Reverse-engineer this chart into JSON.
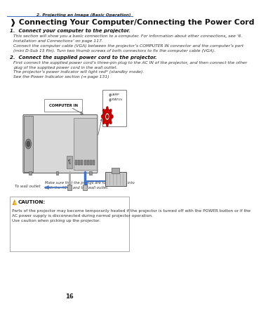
{
  "bg_color": "#ffffff",
  "header_line_color": "#4472c4",
  "header_text": "2. Projecting an Image (Basic Operation)",
  "title": "❱ Connecting Your Computer/Connecting the Power Cord",
  "step1_bold": "1.  Connect your computer to the projector.",
  "step1_p1": "This section will show you a basic connection to a computer. For information about other connections, see ‘6.\nInstallation and Connections’ on page 117.",
  "step1_p2": "Connect the computer cable (VGA) between the projector’s COMPUTER IN connector and the computer’s port\n(mini D-Sub 15 Pin). Turn two thumb screws of both connectors to fix the computer cable (VGA).",
  "step2_bold": "2.  Connect the supplied power cord to the projector.",
  "step2_p1": "First connect the supplied power cord’s three-pin plug to the AC IN of the projector, and then connect the other\nplug of the supplied power cord in the wall outlet.",
  "step2_p2": "The projector’s power indicator will light red* (standby mode).",
  "step2_p3": "See the Power Indicator section (→ page 131)",
  "caution_title": "CAUTION:",
  "caution_text": "Parts of the projector may become temporarily heated if the projector is turned off with the POWER button or if the\nAC power supply is disconnected during normal projector operation.\nUse caution when picking up the projector.",
  "page_num": "16",
  "caution_bg": "#ffffff",
  "caution_border": "#aaaaaa",
  "caution_icon_color": "#e8a000",
  "to_wall_outlet": "To wall outlet",
  "make_sure": "Make sure that the prongs are fully inserted into\nboth the AC IN and the wall outlet.",
  "lamp_text": "LAMP",
  "status_text": "STATUS",
  "computer_in_text": "COMPUTER IN"
}
